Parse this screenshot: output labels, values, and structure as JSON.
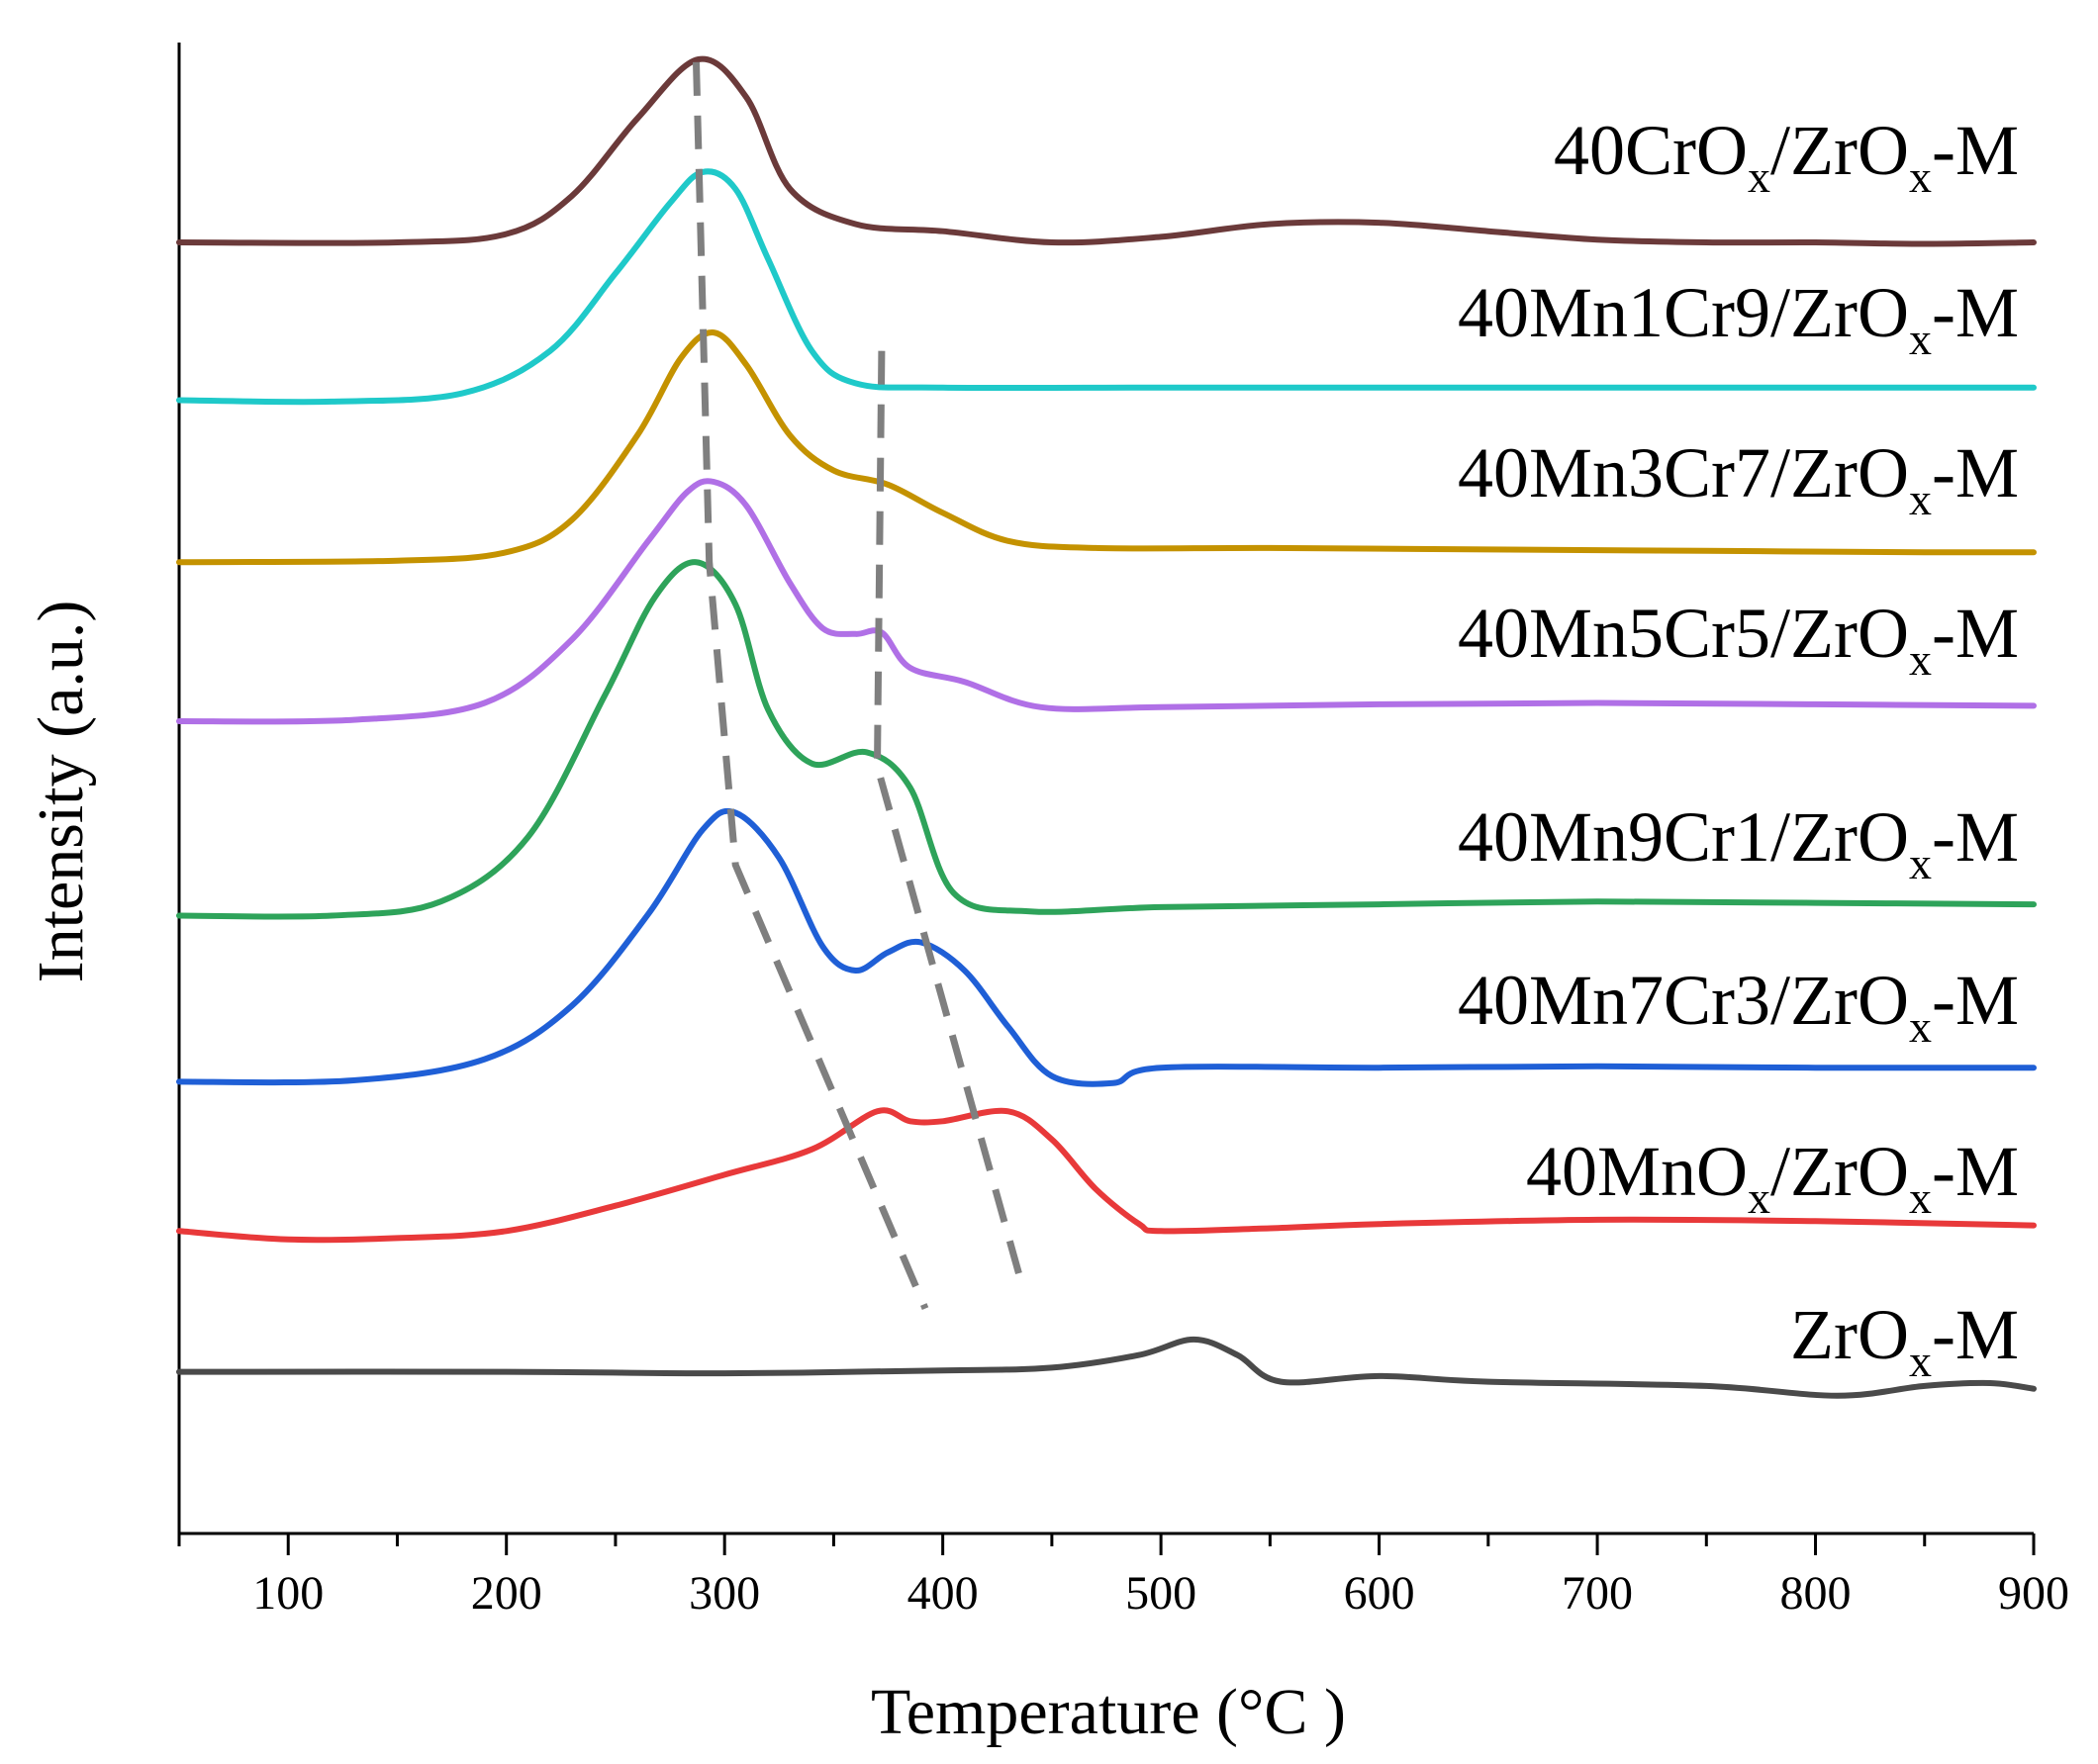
{
  "chart_data": {
    "type": "line",
    "title": "",
    "xlabel": "Temperature (°C )",
    "ylabel": "Intensity (a.u.)",
    "xlim": [
      50,
      900
    ],
    "xticks": [
      100,
      200,
      300,
      400,
      500,
      600,
      700,
      800,
      900
    ],
    "yticks_shown": false,
    "grid": false,
    "legend": "labels placed at right end of each curve",
    "y_unit_note": "y values are normalized intensity units (a.u.) including vertical stacking offset",
    "series": [
      {
        "name": "40CrOx/ZrOx-M",
        "label_main": "40CrO",
        "label_sub1": "x",
        "label_mid": "/ZrO",
        "label_sub2": "x",
        "label_end": "-M",
        "color": "#6b3a3a",
        "points": [
          [
            50,
            8.72
          ],
          [
            150,
            8.72
          ],
          [
            200,
            8.78
          ],
          [
            230,
            9.05
          ],
          [
            260,
            9.6
          ],
          [
            288,
            10.02
          ],
          [
            310,
            9.75
          ],
          [
            330,
            9.1
          ],
          [
            360,
            8.85
          ],
          [
            400,
            8.8
          ],
          [
            450,
            8.72
          ],
          [
            500,
            8.76
          ],
          [
            550,
            8.85
          ],
          [
            600,
            8.86
          ],
          [
            650,
            8.8
          ],
          [
            700,
            8.74
          ],
          [
            750,
            8.72
          ],
          [
            800,
            8.72
          ],
          [
            850,
            8.71
          ],
          [
            900,
            8.72
          ]
        ]
      },
      {
        "name": "40Mn1Cr9/ZrOx-M",
        "label_main": "40Mn1Cr9/ZrO",
        "label_sub1": "x",
        "label_mid": "",
        "label_sub2": "",
        "label_end": "-M",
        "color": "#1fc9c9",
        "points": [
          [
            50,
            7.6
          ],
          [
            120,
            7.59
          ],
          [
            180,
            7.65
          ],
          [
            220,
            7.95
          ],
          [
            250,
            8.5
          ],
          [
            275,
            9.0
          ],
          [
            290,
            9.22
          ],
          [
            305,
            9.1
          ],
          [
            320,
            8.6
          ],
          [
            340,
            7.95
          ],
          [
            360,
            7.72
          ],
          [
            400,
            7.69
          ],
          [
            500,
            7.69
          ],
          [
            600,
            7.69
          ],
          [
            700,
            7.69
          ],
          [
            800,
            7.69
          ],
          [
            900,
            7.69
          ]
        ]
      },
      {
        "name": "40Mn3Cr7/ZrOx-M",
        "label_main": "40Mn3Cr7/ZrO",
        "label_sub1": "x",
        "label_mid": "",
        "label_sub2": "",
        "label_end": "-M",
        "color": "#c49200",
        "points": [
          [
            50,
            6.45
          ],
          [
            150,
            6.46
          ],
          [
            200,
            6.52
          ],
          [
            230,
            6.75
          ],
          [
            260,
            7.35
          ],
          [
            280,
            7.9
          ],
          [
            295,
            8.08
          ],
          [
            310,
            7.85
          ],
          [
            330,
            7.35
          ],
          [
            350,
            7.1
          ],
          [
            375,
            7.0
          ],
          [
            400,
            6.8
          ],
          [
            430,
            6.6
          ],
          [
            470,
            6.55
          ],
          [
            550,
            6.55
          ],
          [
            650,
            6.54
          ],
          [
            750,
            6.53
          ],
          [
            850,
            6.52
          ],
          [
            900,
            6.52
          ]
        ]
      },
      {
        "name": "40Mn5Cr5/ZrOx-M",
        "label_main": "40Mn5Cr5/ZrO",
        "label_sub1": "x",
        "label_mid": "",
        "label_sub2": "",
        "label_end": "-M",
        "color": "#b070e6",
        "points": [
          [
            50,
            5.32
          ],
          [
            130,
            5.33
          ],
          [
            190,
            5.45
          ],
          [
            230,
            5.9
          ],
          [
            265,
            6.6
          ],
          [
            283,
            6.95
          ],
          [
            295,
            7.02
          ],
          [
            310,
            6.85
          ],
          [
            330,
            6.3
          ],
          [
            345,
            5.98
          ],
          [
            360,
            5.94
          ],
          [
            372,
            5.95
          ],
          [
            385,
            5.7
          ],
          [
            410,
            5.6
          ],
          [
            445,
            5.42
          ],
          [
            500,
            5.42
          ],
          [
            600,
            5.44
          ],
          [
            700,
            5.45
          ],
          [
            800,
            5.44
          ],
          [
            900,
            5.43
          ]
        ]
      },
      {
        "name": "40Mn9Cr1/ZrOx-M",
        "label_main": "40Mn9Cr1/ZrO",
        "label_sub1": "x",
        "label_mid": "",
        "label_sub2": "",
        "label_end": "-M",
        "color": "#2ea35a",
        "points": [
          [
            50,
            3.94
          ],
          [
            120,
            3.94
          ],
          [
            170,
            4.04
          ],
          [
            210,
            4.5
          ],
          [
            245,
            5.5
          ],
          [
            268,
            6.2
          ],
          [
            287,
            6.45
          ],
          [
            305,
            6.15
          ],
          [
            320,
            5.4
          ],
          [
            340,
            5.02
          ],
          [
            365,
            5.1
          ],
          [
            385,
            4.85
          ],
          [
            405,
            4.1
          ],
          [
            440,
            3.97
          ],
          [
            500,
            4.0
          ],
          [
            600,
            4.02
          ],
          [
            700,
            4.04
          ],
          [
            800,
            4.03
          ],
          [
            900,
            4.02
          ]
        ]
      },
      {
        "name": "40Mn7Cr3/ZrOx-M",
        "label_main": "40Mn7Cr3/ZrO",
        "label_sub1": "x",
        "label_mid": "",
        "label_sub2": "",
        "label_end": "-M",
        "color": "#1f5fd6",
        "points": [
          [
            50,
            2.76
          ],
          [
            130,
            2.77
          ],
          [
            190,
            2.92
          ],
          [
            230,
            3.3
          ],
          [
            265,
            3.95
          ],
          [
            290,
            4.55
          ],
          [
            305,
            4.67
          ],
          [
            325,
            4.35
          ],
          [
            345,
            3.72
          ],
          [
            360,
            3.55
          ],
          [
            375,
            3.68
          ],
          [
            390,
            3.75
          ],
          [
            410,
            3.55
          ],
          [
            430,
            3.15
          ],
          [
            450,
            2.8
          ],
          [
            478,
            2.75
          ],
          [
            500,
            2.86
          ],
          [
            600,
            2.86
          ],
          [
            700,
            2.87
          ],
          [
            800,
            2.86
          ],
          [
            900,
            2.86
          ]
        ]
      },
      {
        "name": "40MnOx/ZrOx-M",
        "label_main": "40MnO",
        "label_sub1": "x",
        "label_mid": "/ZrO",
        "label_sub2": "x",
        "label_end": "-M",
        "color": "#e8393a",
        "points": [
          [
            50,
            1.7
          ],
          [
            100,
            1.64
          ],
          [
            150,
            1.65
          ],
          [
            200,
            1.7
          ],
          [
            250,
            1.88
          ],
          [
            300,
            2.1
          ],
          [
            340,
            2.28
          ],
          [
            370,
            2.55
          ],
          [
            385,
            2.48
          ],
          [
            400,
            2.48
          ],
          [
            430,
            2.55
          ],
          [
            450,
            2.35
          ],
          [
            470,
            2.0
          ],
          [
            490,
            1.75
          ],
          [
            500,
            1.7
          ],
          [
            550,
            1.72
          ],
          [
            600,
            1.75
          ],
          [
            700,
            1.78
          ],
          [
            800,
            1.77
          ],
          [
            900,
            1.74
          ]
        ]
      },
      {
        "name": "ZrOx-M",
        "label_main": "ZrO",
        "label_sub1": "x",
        "label_mid": "",
        "label_sub2": "",
        "label_end": "-M",
        "color": "#4a4a4a",
        "points": [
          [
            50,
            0.7
          ],
          [
            200,
            0.7
          ],
          [
            300,
            0.69
          ],
          [
            400,
            0.71
          ],
          [
            450,
            0.73
          ],
          [
            490,
            0.82
          ],
          [
            515,
            0.93
          ],
          [
            535,
            0.82
          ],
          [
            555,
            0.63
          ],
          [
            600,
            0.67
          ],
          [
            650,
            0.63
          ],
          [
            750,
            0.6
          ],
          [
            810,
            0.53
          ],
          [
            850,
            0.6
          ],
          [
            880,
            0.62
          ],
          [
            900,
            0.58
          ]
        ]
      }
    ],
    "guides": [
      {
        "name": "guide-line-left",
        "points": [
          [
            287,
            10.0
          ],
          [
            293,
            6.45
          ],
          [
            305,
            4.3
          ],
          [
            392,
            1.15
          ]
        ]
      },
      {
        "name": "guide-line-right",
        "points": [
          [
            372,
            7.95
          ],
          [
            370,
            5.0
          ],
          [
            437,
            1.28
          ]
        ]
      }
    ]
  }
}
